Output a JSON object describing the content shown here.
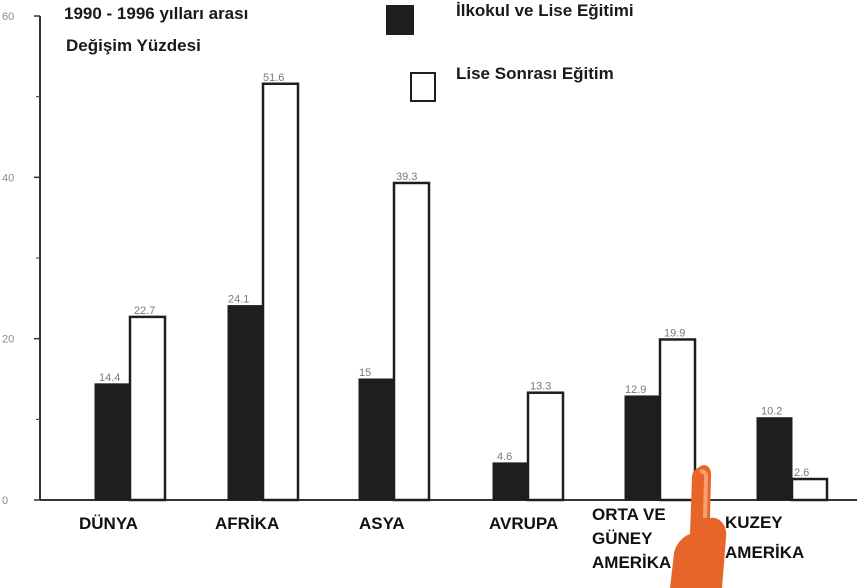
{
  "title_line1": "1990 - 1996 yılları arası",
  "title_line2": "Değişim Yüzdesi",
  "colors": {
    "dark": "#1e1e1e",
    "light": "#ffffff",
    "axis": "#333333",
    "hand": "#e8652a"
  },
  "chart_data": {
    "type": "bar",
    "title": "1990 - 1996 yılları arası Değişim Yüzdesi",
    "categories": [
      "DÜNYA",
      "AFRİKA",
      "ASYA",
      "AVRUPA",
      "ORTA VE GÜNEY AMERİKA",
      "KUZEY AMERİKA"
    ],
    "category_lines": [
      [
        "DÜNYA"
      ],
      [
        "AFRİKA"
      ],
      [
        "ASYA"
      ],
      [
        "AVRUPA"
      ],
      [
        "ORTA VE",
        "GÜNEY",
        "AMERİKA"
      ],
      [
        "KUZEY",
        "AMERİKA"
      ]
    ],
    "series": [
      {
        "name": "İlkokul ve Lise Eğitimi",
        "values": [
          14.4,
          24.1,
          15,
          4.6,
          12.9,
          10.2
        ],
        "labels": [
          "14.4",
          "24.1",
          "15",
          "4.6",
          "12.9",
          "10.2"
        ]
      },
      {
        "name": "Lise Sonrası Eğitim",
        "values": [
          22.7,
          51.6,
          39.3,
          13.3,
          19.9,
          2.6
        ],
        "labels": [
          "22.7",
          "51.6",
          "39.3",
          "13.3",
          "19.9",
          "2.6"
        ]
      }
    ],
    "yticks": [
      "0",
      "20",
      "40",
      "60"
    ],
    "ylim": [
      0,
      60
    ],
    "grid": false,
    "legend": "top-right"
  }
}
